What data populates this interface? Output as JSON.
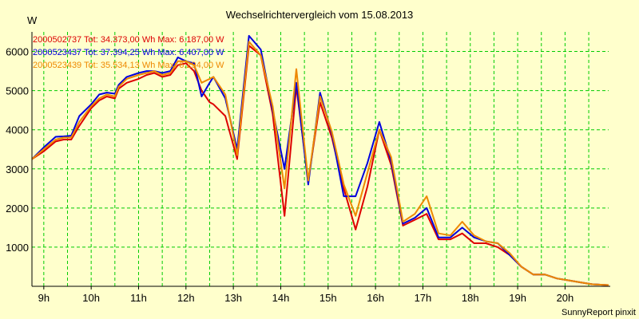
{
  "chart_data": {
    "type": "line",
    "title": "Wechselrichtervergleich vom 15.08.2013",
    "ylabel": "W",
    "xlabel": "",
    "footer": "SunnyReport pinxit",
    "ylim": [
      0,
      6500
    ],
    "xlim": [
      8.75,
      20.92
    ],
    "y_ticks": [
      1000,
      2000,
      3000,
      4000,
      5000,
      6000
    ],
    "y_tick_labels": [
      "1000",
      "2000",
      "3000",
      "4000",
      "5000",
      "6000"
    ],
    "x_ticks": [
      9,
      10,
      11,
      12,
      13,
      14,
      15,
      16,
      17,
      18,
      19,
      20
    ],
    "x_tick_labels": [
      "9h",
      "10h",
      "11h",
      "12h",
      "13h",
      "14h",
      "15h",
      "16h",
      "17h",
      "18h",
      "19h",
      "20h"
    ],
    "grid": true,
    "legend_position": "top-left",
    "colors": {
      "background": "#ffffcc",
      "grid": "#00cc00",
      "axis": "#000000"
    },
    "series": [
      {
        "name": "2000502737",
        "legend": "2000502737 Tot: 34.373,00 Wh Max: 6.187,00 W",
        "color": "#dd0000",
        "x": [
          8.75,
          9.0,
          9.25,
          9.42,
          9.58,
          9.75,
          10.0,
          10.17,
          10.33,
          10.5,
          10.58,
          10.75,
          11.0,
          11.17,
          11.33,
          11.5,
          11.67,
          11.83,
          12.0,
          12.17,
          12.33,
          12.5,
          12.58,
          12.83,
          13.08,
          13.33,
          13.58,
          13.83,
          14.08,
          14.33,
          14.58,
          14.83,
          15.08,
          15.33,
          15.58,
          15.83,
          16.08,
          16.33,
          16.58,
          16.83,
          17.08,
          17.33,
          17.58,
          17.83,
          18.08,
          18.33,
          18.58,
          18.83,
          19.08,
          19.33,
          19.58,
          19.83,
          20.08,
          20.33,
          20.58,
          20.92
        ],
        "y": [
          3250,
          3450,
          3700,
          3750,
          3750,
          4100,
          4550,
          4750,
          4850,
          4800,
          5050,
          5200,
          5300,
          5400,
          5450,
          5350,
          5400,
          5650,
          5700,
          5500,
          5000,
          4700,
          4650,
          4350,
          3250,
          6150,
          5900,
          4400,
          1800,
          5100,
          2700,
          4700,
          3800,
          2500,
          1450,
          2550,
          4000,
          3100,
          1550,
          1700,
          1850,
          1200,
          1200,
          1350,
          1100,
          1100,
          1000,
          800,
          500,
          300,
          300,
          200,
          150,
          100,
          50,
          30
        ]
      },
      {
        "name": "2000523437",
        "legend": "2000523437 Tot: 37.394,25 Wh Max: 6.407,00 W",
        "color": "#0000dd",
        "x": [
          8.75,
          9.0,
          9.25,
          9.42,
          9.58,
          9.75,
          10.0,
          10.17,
          10.33,
          10.5,
          10.58,
          10.75,
          11.0,
          11.17,
          11.33,
          11.5,
          11.67,
          11.83,
          12.0,
          12.17,
          12.33,
          12.5,
          12.58,
          12.83,
          13.08,
          13.33,
          13.58,
          13.83,
          14.08,
          14.33,
          14.58,
          14.83,
          15.08,
          15.33,
          15.58,
          15.83,
          16.08,
          16.33,
          16.58,
          16.83,
          17.08,
          17.33,
          17.58,
          17.83,
          18.08,
          18.33,
          18.58,
          18.83,
          19.08,
          19.33,
          19.58,
          19.83,
          20.08,
          20.33,
          20.58,
          20.92
        ],
        "y": [
          3250,
          3550,
          3820,
          3830,
          3850,
          4350,
          4650,
          4900,
          4950,
          4920,
          5150,
          5350,
          5450,
          5500,
          5500,
          5450,
          5500,
          5850,
          5750,
          5700,
          4850,
          5200,
          5350,
          4800,
          3500,
          6400,
          6050,
          4500,
          3000,
          5200,
          2600,
          4950,
          3900,
          2300,
          2300,
          3150,
          4200,
          3200,
          1600,
          1750,
          2000,
          1250,
          1250,
          1500,
          1250,
          1150,
          1100,
          800,
          500,
          300,
          300,
          200,
          150,
          100,
          50,
          30
        ]
      },
      {
        "name": "2000523439",
        "legend": "2000523439 Tot: 35.534,13 Wh Max: 6.294,00 W",
        "color": "#ee8800",
        "x": [
          8.75,
          9.0,
          9.25,
          9.42,
          9.58,
          9.75,
          10.0,
          10.17,
          10.33,
          10.5,
          10.58,
          10.75,
          11.0,
          11.17,
          11.33,
          11.5,
          11.67,
          11.83,
          12.0,
          12.17,
          12.33,
          12.5,
          12.58,
          12.83,
          13.08,
          13.33,
          13.58,
          13.83,
          14.08,
          14.33,
          14.58,
          14.83,
          15.08,
          15.33,
          15.58,
          15.83,
          16.08,
          16.33,
          16.58,
          16.83,
          17.08,
          17.33,
          17.58,
          17.83,
          18.08,
          18.33,
          18.58,
          18.83,
          19.08,
          19.33,
          19.58,
          19.83,
          20.08,
          20.33,
          20.58,
          20.92
        ],
        "y": [
          3250,
          3500,
          3750,
          3800,
          3800,
          4200,
          4600,
          4800,
          4900,
          4850,
          5100,
          5300,
          5400,
          5450,
          5500,
          5400,
          5450,
          5750,
          5750,
          5650,
          5200,
          5300,
          5350,
          4900,
          3350,
          6250,
          5900,
          4600,
          2500,
          5550,
          2700,
          4850,
          3950,
          2600,
          1800,
          2900,
          4000,
          3300,
          1650,
          1850,
          2300,
          1350,
          1300,
          1650,
          1300,
          1150,
          1100,
          850,
          500,
          300,
          300,
          200,
          150,
          100,
          50,
          30
        ]
      }
    ]
  }
}
